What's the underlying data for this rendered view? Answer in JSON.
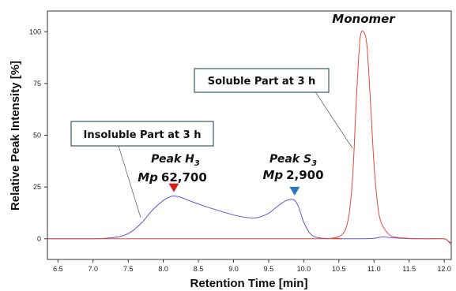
{
  "chart_data": {
    "type": "line",
    "title": "",
    "xlabel": "Retention Time [min]",
    "ylabel": "Relative Peak Intensity [%]",
    "xlim": [
      6.35,
      12.1
    ],
    "ylim": [
      -10,
      110
    ],
    "x_ticks": [
      "6.5",
      "7.0",
      "7.5",
      "8.0",
      "8.5",
      "9.0",
      "9.5",
      "10.0",
      "10.5",
      "11.0",
      "11.5",
      "12.0"
    ],
    "y_ticks": [
      "0",
      "25",
      "50",
      "75",
      "100"
    ],
    "grid": false,
    "colors": {
      "insoluble": "#5b5bd6",
      "soluble": "#e8473d",
      "marker_h3": "#d62020",
      "marker_s3": "#2c78c0"
    },
    "series": [
      {
        "key": "insoluble",
        "x": [
          6.35,
          7.0,
          7.2,
          7.4,
          7.55,
          7.7,
          7.85,
          8.0,
          8.1,
          8.15,
          8.25,
          8.4,
          8.6,
          8.8,
          9.0,
          9.2,
          9.35,
          9.5,
          9.6,
          9.7,
          9.78,
          9.84,
          9.88,
          9.93,
          10.0,
          10.08,
          10.15,
          10.25,
          10.4,
          10.6,
          10.8,
          11.0,
          11.1,
          11.15,
          11.25,
          11.4,
          11.6,
          11.8,
          12.0,
          12.05,
          12.1
        ],
        "y": [
          0,
          0,
          0.3,
          1.2,
          3.5,
          8,
          14,
          18.5,
          20.3,
          20.6,
          20,
          18,
          15.6,
          13.5,
          11.5,
          10.2,
          10.3,
          12.3,
          15,
          17.5,
          18.8,
          19,
          18.2,
          15,
          8,
          3,
          1,
          0.3,
          0.1,
          0,
          0,
          0.2,
          0.8,
          0.9,
          0.5,
          0.2,
          0,
          0,
          0,
          -1,
          -2
        ]
      },
      {
        "key": "soluble",
        "x": [
          6.35,
          10.2,
          10.4,
          10.5,
          10.55,
          10.6,
          10.65,
          10.7,
          10.75,
          10.8,
          10.85,
          10.9,
          10.95,
          11.0,
          11.05,
          11.1,
          11.2,
          11.3,
          11.5,
          11.8,
          12.0,
          12.05,
          12.1
        ],
        "y": [
          0,
          0,
          0.3,
          1.0,
          2.2,
          5,
          13,
          32,
          68,
          96,
          100,
          93,
          66,
          36,
          17,
          8,
          2.5,
          0.8,
          0.2,
          0,
          0,
          -1,
          -3
        ]
      }
    ],
    "annotations": {
      "monomer": "Monomer",
      "soluble_box": "Soluble Part at 3 h",
      "insoluble_box": "Insoluble Part at 3 h",
      "peak_h_word": "Peak H",
      "peak_h_sub": "3",
      "peak_h_mp": "Mp",
      "peak_h_value": "62,700",
      "peak_s_word": "Peak S",
      "peak_s_sub": "3",
      "peak_s_mp": "Mp",
      "peak_s_value": "2,900"
    },
    "markers": [
      {
        "x": 8.15,
        "y": 20.6,
        "color_key": "marker_h3"
      },
      {
        "x": 9.87,
        "y": 19.0,
        "color_key": "marker_s3"
      }
    ]
  }
}
